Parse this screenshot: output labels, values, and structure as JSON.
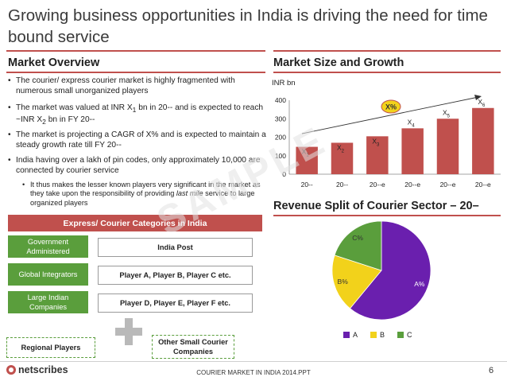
{
  "title": "Growing business opportunities in India is driving the need for time bound service",
  "market_overview": {
    "heading": "Market Overview",
    "bullet1": "The courier/ express courier market is highly fragmented with numerous small unorganized players",
    "bullet2_a": "The market was valued at INR X",
    "bullet2_s1": "1",
    "bullet2_b": " bn in 20-- and is expected to reach ~INR X",
    "bullet2_s2": "2",
    "bullet2_c": " bn in FY 20--",
    "bullet3": "The market is projecting a CAGR of X% and is expected to maintain a steady growth rate till FY 20--",
    "bullet4": "India having over a lakh of pin codes, only approximately 10,000 are  connected by courier service",
    "sub_a": "It thus makes the lesser known players very significant in the market as they take upon the responsibility of   providing ",
    "sub_italic": "last mile",
    "sub_b": " service to large organized players"
  },
  "categories": {
    "header": "Express/ Courier Categories in India",
    "rows": [
      {
        "left": "Government Administered",
        "right": "India Post"
      },
      {
        "left": "Global Integrators",
        "right": "Player A, Player B, Player C etc."
      },
      {
        "left": "Large Indian Companies",
        "right": "Player D, Player E, Player F etc."
      }
    ],
    "regional": "Regional Players",
    "other": "Other Small Courier Companies",
    "plus_icon": "plus-icon"
  },
  "market_size": {
    "heading": "Market Size and Growth",
    "unit": "INR bn",
    "cagr_label": "X%"
  },
  "chart_data": [
    {
      "type": "bar",
      "ylabel": "INR bn",
      "ylim": [
        0,
        400
      ],
      "yticks": [
        "0",
        "100",
        "200",
        "300",
        "400"
      ],
      "categories": [
        "20--",
        "20--",
        "20--e",
        "20--e",
        "20--e",
        "20--e"
      ],
      "values": [
        148,
        170,
        205,
        248,
        300,
        358
      ],
      "bar_labels": [
        "X",
        "X",
        "X",
        "X",
        "X",
        "X"
      ],
      "bar_subs": [
        "1",
        "2",
        "3",
        "4",
        "5",
        "6"
      ],
      "bar_color": "#c0504d",
      "grid": false,
      "annotation": "X%"
    },
    {
      "type": "pie",
      "title": "Revenue Split of Courier Sector – 20–",
      "labels": [
        "A",
        "B",
        "C"
      ],
      "slice_labels": [
        "A%",
        "B%",
        "C%"
      ],
      "values": [
        61,
        19,
        20
      ],
      "colors": [
        "#6a1fae",
        "#f2d21b",
        "#5a9e3c"
      ],
      "legend": "bottom"
    }
  ],
  "watermark": "SAMPLE",
  "footer": {
    "logo": "netscribes",
    "center": "COURIER MARKET IN INDIA 2014.PPT",
    "page": "6"
  }
}
